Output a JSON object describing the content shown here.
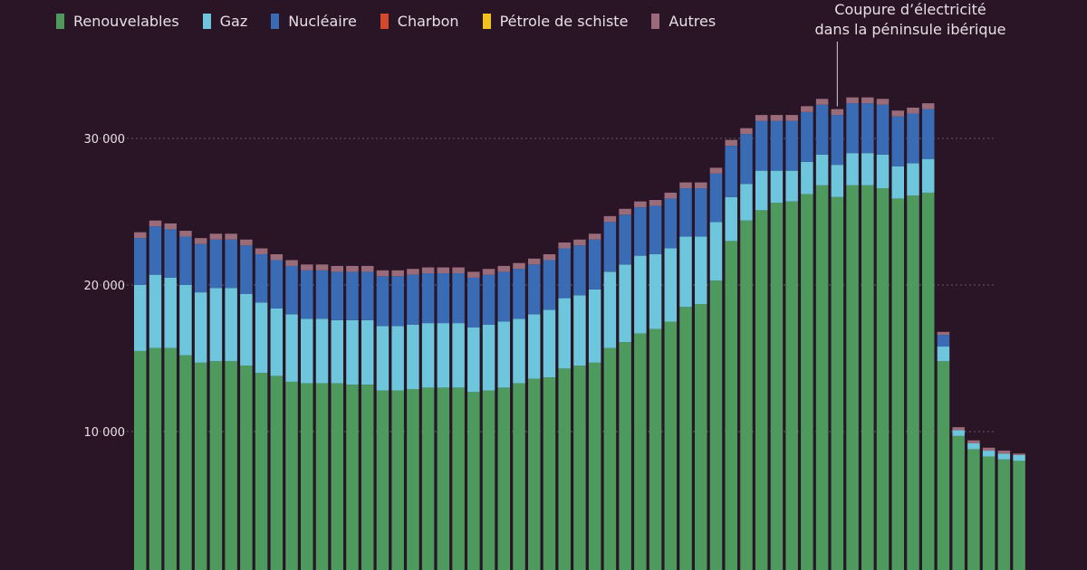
{
  "chart_data": {
    "type": "bar",
    "stacked": true,
    "ylim": [
      0,
      35000
    ],
    "grid": true,
    "legend_position": "top-left",
    "yticks": [
      {
        "value": 10000,
        "label": "10 000"
      },
      {
        "value": 20000,
        "label": "20 000"
      },
      {
        "value": 30000,
        "label": "30 000"
      }
    ],
    "annotation": {
      "lines": [
        "Coupure d’électricité",
        "dans la péninsule ibérique"
      ],
      "bar_index": 46
    },
    "series": [
      {
        "name": "Renouvelables",
        "color": "#4e9a5e",
        "values": [
          15500,
          15700,
          15700,
          15200,
          14700,
          14800,
          14800,
          14500,
          14000,
          13800,
          13400,
          13300,
          13300,
          13300,
          13200,
          13200,
          12800,
          12800,
          12900,
          13000,
          13000,
          13000,
          12700,
          12800,
          13000,
          13300,
          13600,
          13700,
          14300,
          14500,
          14700,
          15700,
          16100,
          16700,
          17000,
          17500,
          18500,
          18700,
          20300,
          23000,
          24400,
          25100,
          25600,
          25700,
          26200,
          26800,
          26000,
          26800,
          26800,
          26600,
          25900,
          26100,
          26300,
          14800,
          9700,
          8800,
          8300,
          8100,
          8000
        ]
      },
      {
        "name": "Gaz",
        "color": "#6ec6dc",
        "values": [
          4500,
          5000,
          4800,
          4800,
          4800,
          5000,
          5000,
          4900,
          4800,
          4600,
          4600,
          4400,
          4400,
          4300,
          4400,
          4400,
          4400,
          4400,
          4400,
          4400,
          4400,
          4400,
          4400,
          4500,
          4500,
          4400,
          4400,
          4600,
          4800,
          4800,
          5000,
          5200,
          5300,
          5300,
          5100,
          5000,
          4800,
          4600,
          4000,
          3000,
          2500,
          2700,
          2200,
          2100,
          2200,
          2100,
          2200,
          2200,
          2200,
          2300,
          2200,
          2200,
          2300,
          1000,
          400,
          400,
          400,
          400,
          400
        ]
      },
      {
        "name": "Nucléaire",
        "color": "#3a6bb5",
        "values": [
          3200,
          3300,
          3300,
          3300,
          3300,
          3300,
          3300,
          3300,
          3300,
          3300,
          3300,
          3300,
          3300,
          3300,
          3300,
          3300,
          3400,
          3400,
          3400,
          3400,
          3400,
          3400,
          3400,
          3400,
          3400,
          3400,
          3400,
          3400,
          3400,
          3400,
          3400,
          3400,
          3400,
          3300,
          3300,
          3400,
          3300,
          3300,
          3300,
          3500,
          3400,
          3400,
          3400,
          3400,
          3400,
          3400,
          3400,
          3400,
          3400,
          3400,
          3400,
          3400,
          3400,
          800,
          0,
          0,
          0,
          0,
          0
        ]
      },
      {
        "name": "Charbon",
        "color": "#d2492f",
        "values": [
          0,
          0,
          0,
          0,
          0,
          0,
          0,
          0,
          0,
          0,
          0,
          0,
          0,
          0,
          0,
          0,
          0,
          0,
          0,
          0,
          0,
          0,
          0,
          0,
          0,
          0,
          0,
          0,
          0,
          0,
          0,
          0,
          0,
          0,
          0,
          0,
          0,
          0,
          0,
          0,
          0,
          0,
          0,
          0,
          0,
          0,
          0,
          0,
          0,
          0,
          0,
          0,
          0,
          0,
          0,
          0,
          0,
          0,
          0
        ]
      },
      {
        "name": "Pétrole de schiste",
        "color": "#f1c21b",
        "values": [
          0,
          0,
          0,
          0,
          0,
          0,
          0,
          0,
          0,
          0,
          0,
          0,
          0,
          0,
          0,
          0,
          0,
          0,
          0,
          0,
          0,
          0,
          0,
          0,
          0,
          0,
          0,
          0,
          0,
          0,
          0,
          0,
          0,
          0,
          0,
          0,
          0,
          0,
          0,
          0,
          0,
          0,
          0,
          0,
          0,
          0,
          0,
          0,
          0,
          0,
          0,
          0,
          0,
          0,
          0,
          0,
          0,
          0,
          0
        ]
      },
      {
        "name": "Autres",
        "color": "#9a6b78",
        "values": [
          400,
          400,
          400,
          400,
          400,
          400,
          400,
          400,
          400,
          400,
          400,
          400,
          400,
          400,
          400,
          400,
          400,
          400,
          400,
          400,
          400,
          400,
          400,
          400,
          400,
          400,
          400,
          400,
          400,
          400,
          400,
          400,
          400,
          400,
          400,
          400,
          400,
          400,
          400,
          400,
          400,
          400,
          400,
          400,
          400,
          400,
          400,
          400,
          400,
          400,
          400,
          400,
          400,
          200,
          200,
          200,
          200,
          200,
          100
        ]
      }
    ]
  }
}
